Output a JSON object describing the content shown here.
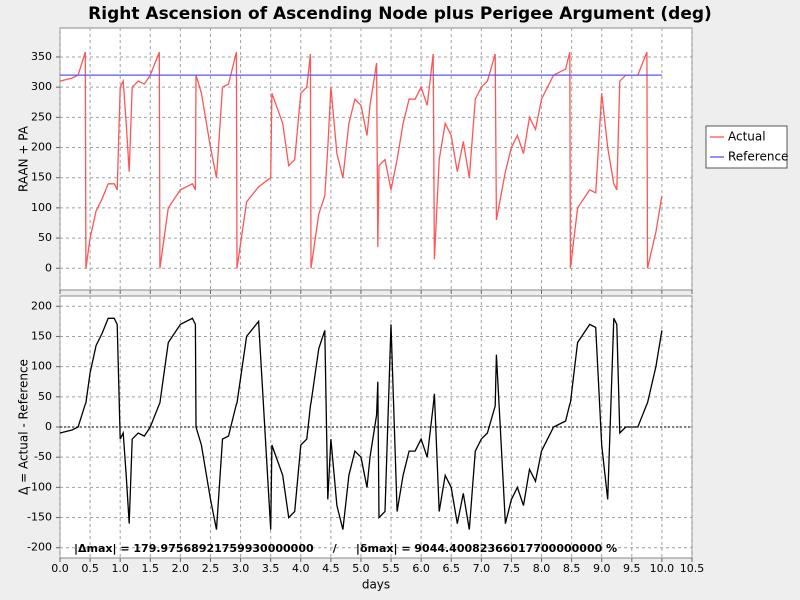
{
  "chart_data": [
    {
      "type": "line",
      "title": "Right Ascension of Ascending Node plus Perigee Argument (deg)",
      "y_label": "RAAN + PA",
      "ylim": [
        -36,
        398
      ],
      "yticks": [
        0,
        50,
        100,
        150,
        200,
        250,
        300,
        350
      ],
      "xlim": [
        0,
        10.5
      ],
      "grid": true,
      "legend": "right",
      "series": [
        {
          "name": "Actual",
          "color": "#ff5555",
          "x": [
            0,
            0.2,
            0.3,
            0.42,
            0.43,
            0.5,
            0.6,
            0.7,
            0.8,
            0.9,
            0.95,
            1.0,
            1.05,
            1.1,
            1.15,
            1.2,
            1.3,
            1.4,
            1.5,
            1.65,
            1.66,
            1.8,
            2.0,
            2.2,
            2.25,
            2.26,
            2.35,
            2.5,
            2.6,
            2.7,
            2.8,
            2.93,
            2.94,
            3.1,
            3.3,
            3.5,
            3.52,
            3.7,
            3.8,
            3.9,
            4.0,
            4.1,
            4.16,
            4.17,
            4.3,
            4.4,
            4.45,
            4.5,
            4.6,
            4.7,
            4.8,
            4.9,
            5.0,
            5.1,
            5.15,
            5.26,
            5.28,
            5.3,
            5.4,
            5.5,
            5.6,
            5.7,
            5.8,
            5.9,
            6.0,
            6.1,
            6.2,
            6.22,
            6.3,
            6.4,
            6.5,
            6.6,
            6.7,
            6.8,
            6.9,
            7.0,
            7.1,
            7.23,
            7.25,
            7.4,
            7.5,
            7.6,
            7.7,
            7.8,
            7.9,
            8.0,
            8.1,
            8.2,
            8.4,
            8.47,
            8.48,
            8.6,
            8.8,
            8.9,
            9.0,
            9.1,
            9.2,
            9.25,
            9.3,
            9.4,
            9.6,
            9.75,
            9.76,
            9.9,
            10.0
          ],
          "values": [
            310,
            315,
            320,
            358,
            0,
            50,
            95,
            115,
            140,
            140,
            130,
            300,
            310,
            240,
            160,
            300,
            310,
            305,
            320,
            358,
            0,
            100,
            130,
            140,
            130,
            320,
            290,
            200,
            150,
            300,
            305,
            358,
            0,
            110,
            135,
            150,
            290,
            240,
            170,
            180,
            290,
            300,
            355,
            0,
            90,
            120,
            200,
            300,
            190,
            150,
            240,
            280,
            270,
            220,
            270,
            340,
            35,
            170,
            180,
            130,
            180,
            240,
            280,
            280,
            300,
            270,
            355,
            15,
            180,
            240,
            220,
            160,
            210,
            150,
            280,
            300,
            310,
            355,
            80,
            160,
            200,
            220,
            190,
            250,
            230,
            280,
            300,
            320,
            330,
            358,
            0,
            100,
            130,
            125,
            290,
            200,
            140,
            130,
            310,
            320,
            320,
            358,
            0,
            60,
            120
          ]
        },
        {
          "name": "Reference",
          "color": "#5555ff",
          "x": [
            0,
            10
          ],
          "values": [
            320,
            320
          ]
        }
      ]
    },
    {
      "type": "line",
      "y_label": "Δ = Actual - Reference",
      "x_label": "days",
      "annotation": "|Δmax| = 179.97568921759930000000     /     |δmax| = 9044.40082366017700000000 %",
      "ylim": [
        -217,
        217
      ],
      "yticks": [
        -200,
        -150,
        -100,
        -50,
        0,
        50,
        100,
        150,
        200
      ],
      "xlim": [
        0,
        10.5
      ],
      "grid": true,
      "xticks": [
        {
          "value": 0,
          "label": "0.0"
        },
        {
          "value": 0.5,
          "label": "0.5"
        },
        {
          "value": 1,
          "label": "1.0"
        },
        {
          "value": 1.5,
          "label": "1.5"
        },
        {
          "value": 2,
          "label": "2.0"
        },
        {
          "value": 2.5,
          "label": "2.5"
        },
        {
          "value": 3,
          "label": "3.0"
        },
        {
          "value": 3.5,
          "label": "3.5"
        },
        {
          "value": 4,
          "label": "4.0"
        },
        {
          "value": 4.5,
          "label": "4.5"
        },
        {
          "value": 5,
          "label": "5.0"
        },
        {
          "value": 5.5,
          "label": "5.5"
        },
        {
          "value": 6,
          "label": "6.0"
        },
        {
          "value": 6.5,
          "label": "6.5"
        },
        {
          "value": 7,
          "label": "7.0"
        },
        {
          "value": 7.5,
          "label": "7.5"
        },
        {
          "value": 8,
          "label": "8.0"
        },
        {
          "value": 8.5,
          "label": "8.5"
        },
        {
          "value": 9,
          "label": "9.0"
        },
        {
          "value": 9.5,
          "label": "9.5"
        },
        {
          "value": 10,
          "label": "10.0"
        },
        {
          "value": 10.5,
          "label": "10.5"
        }
      ],
      "series": [
        {
          "color": "#000000",
          "x": [
            0,
            0.2,
            0.3,
            0.42,
            0.43,
            0.5,
            0.6,
            0.7,
            0.8,
            0.9,
            0.95,
            1.0,
            1.05,
            1.1,
            1.15,
            1.2,
            1.3,
            1.4,
            1.5,
            1.65,
            1.66,
            1.8,
            2.0,
            2.2,
            2.25,
            2.26,
            2.35,
            2.5,
            2.6,
            2.7,
            2.8,
            2.93,
            2.94,
            3.1,
            3.3,
            3.5,
            3.52,
            3.7,
            3.8,
            3.9,
            4.0,
            4.1,
            4.16,
            4.17,
            4.3,
            4.4,
            4.45,
            4.5,
            4.6,
            4.7,
            4.8,
            4.9,
            5.0,
            5.1,
            5.15,
            5.26,
            5.28,
            5.3,
            5.4,
            5.5,
            5.6,
            5.7,
            5.8,
            5.9,
            6.0,
            6.1,
            6.2,
            6.22,
            6.3,
            6.4,
            6.5,
            6.6,
            6.7,
            6.8,
            6.9,
            7.0,
            7.1,
            7.23,
            7.25,
            7.4,
            7.5,
            7.6,
            7.7,
            7.8,
            7.9,
            8.0,
            8.1,
            8.2,
            8.4,
            8.47,
            8.48,
            8.6,
            8.8,
            8.9,
            9.0,
            9.1,
            9.2,
            9.25,
            9.3,
            9.4,
            9.6,
            9.75,
            9.76,
            9.9,
            10.0
          ],
          "values": [
            -10,
            -5,
            0,
            38,
            40,
            90,
            135,
            155,
            180,
            180,
            170,
            -20,
            -10,
            -80,
            -160,
            -20,
            -10,
            -15,
            0,
            38,
            40,
            140,
            170,
            180,
            170,
            0,
            -30,
            -120,
            -170,
            -20,
            -15,
            38,
            40,
            150,
            175,
            -170,
            -30,
            -80,
            -150,
            -140,
            -30,
            -20,
            35,
            40,
            130,
            160,
            -120,
            -20,
            -130,
            -170,
            -80,
            -40,
            -50,
            -100,
            -50,
            20,
            75,
            -150,
            -140,
            170,
            -140,
            -80,
            -40,
            -40,
            -20,
            -50,
            35,
            55,
            -140,
            -80,
            -100,
            -160,
            -110,
            -170,
            -40,
            -20,
            -10,
            35,
            120,
            -160,
            -120,
            -100,
            -130,
            -70,
            -90,
            -40,
            -20,
            0,
            10,
            38,
            40,
            140,
            170,
            165,
            -30,
            -120,
            180,
            170,
            -10,
            0,
            0,
            38,
            40,
            100,
            160
          ]
        }
      ]
    }
  ]
}
